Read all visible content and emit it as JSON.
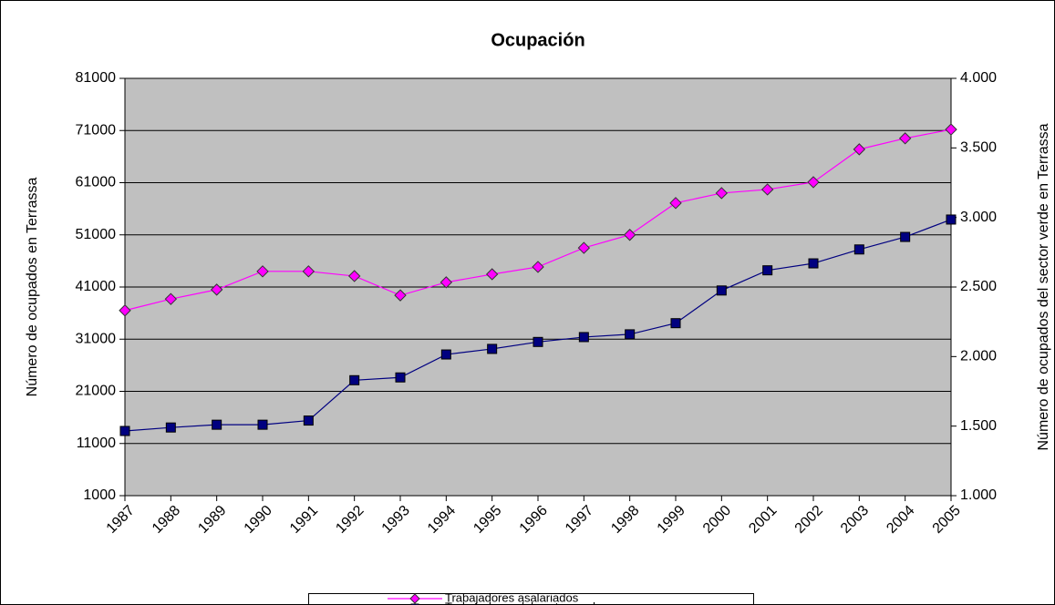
{
  "chart_data": {
    "type": "line",
    "title": "Ocupación",
    "categories": [
      "1987",
      "1988",
      "1989",
      "1990",
      "1991",
      "1992",
      "1993",
      "1994",
      "1995",
      "1996",
      "1997",
      "1998",
      "1999",
      "2000",
      "2001",
      "2002",
      "2003",
      "2004",
      "2005"
    ],
    "series": [
      {
        "name": "Trabajadores asalariados",
        "color": "#ff00ff",
        "marker": "diamond",
        "values": [
          36500,
          38700,
          40500,
          44000,
          44000,
          43100,
          39400,
          41900,
          43450,
          44850,
          48500,
          51000,
          57100,
          59000,
          59700,
          61100,
          67400,
          69500,
          71200
        ]
      },
      {
        "name": "Trabajadores del sector verde",
        "color": "#000080",
        "marker": "square",
        "axis": "y2",
        "values": [
          1465,
          1490,
          1510,
          1510,
          1540,
          1830,
          1850,
          2015,
          2055,
          2105,
          2140,
          2160,
          2240,
          2475,
          2620,
          2670,
          2770,
          2860,
          2985
        ]
      }
    ],
    "ylabel": "Número de ocupados en Terrassa",
    "y2label": "Número de ocupados del sector verde en Terrassa",
    "ylim": [
      1000,
      81000
    ],
    "yticks": [
      1000,
      11000,
      21000,
      31000,
      41000,
      51000,
      61000,
      71000,
      81000
    ],
    "y2lim": [
      1000,
      4000
    ],
    "y2ticks": [
      {
        "value": 1000,
        "label": "1.000"
      },
      {
        "value": 1500,
        "label": "1.500"
      },
      {
        "value": 2000,
        "label": "2.000"
      },
      {
        "value": 2500,
        "label": "2.500"
      },
      {
        "value": 3000,
        "label": "3.000"
      },
      {
        "value": 3500,
        "label": "3.500"
      },
      {
        "value": 4000,
        "label": "4.000"
      }
    ],
    "grid": true
  }
}
